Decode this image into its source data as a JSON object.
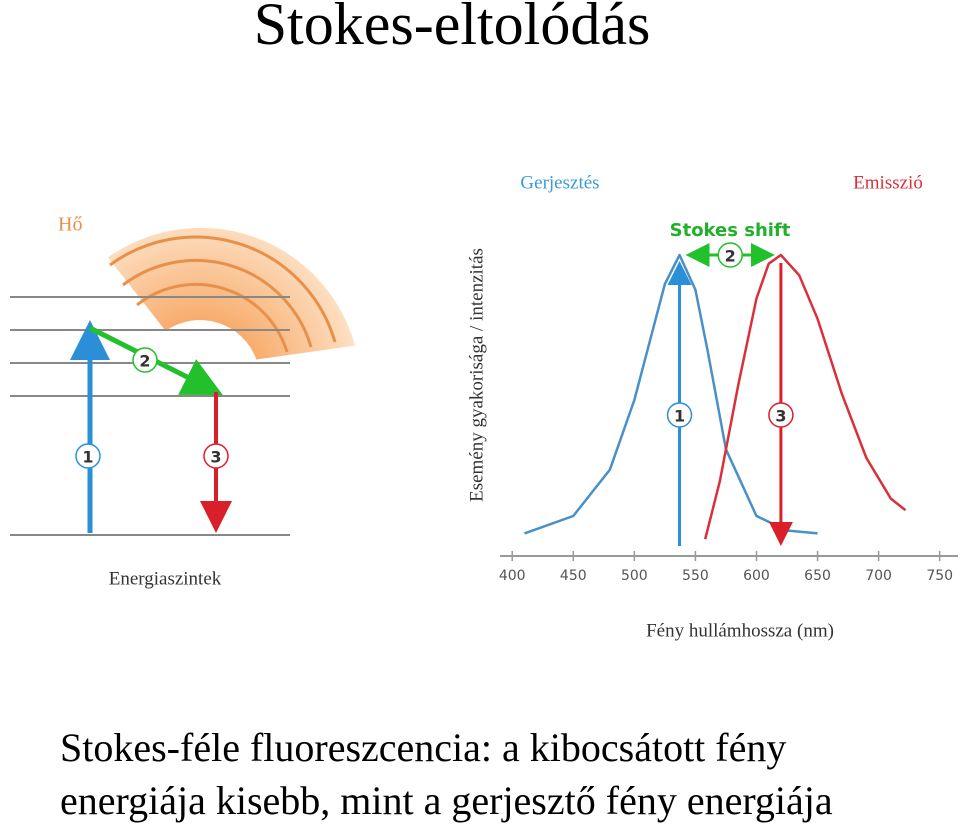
{
  "title": "Stokes-eltolódás",
  "diagram": {
    "heat_label": "Hő",
    "levels_label": "Energiaszintek",
    "step_numbers": [
      "1",
      "2",
      "3"
    ]
  },
  "chart_data": {
    "type": "line",
    "title": "Stokes shift",
    "x_label": "Fény hullámhossza (nm)",
    "y_label": "Esemény gyakorisága / intenzitás",
    "xlim": [
      390,
      765
    ],
    "ylim": [
      0,
      1
    ],
    "xticks": [
      400,
      450,
      500,
      550,
      600,
      650,
      700,
      750
    ],
    "series": [
      {
        "name": "Gerjesztés",
        "color": "#4a90c8",
        "x": [
          410,
          450,
          480,
          500,
          515,
          525,
          537,
          550,
          560,
          575,
          600,
          625,
          650
        ],
        "values": [
          0.04,
          0.1,
          0.26,
          0.5,
          0.74,
          0.9,
          1.0,
          0.88,
          0.67,
          0.33,
          0.1,
          0.05,
          0.04
        ]
      },
      {
        "name": "Emisszió",
        "color": "#d9303a",
        "x": [
          558,
          570,
          585,
          600,
          610,
          620,
          635,
          650,
          670,
          690,
          710,
          722
        ],
        "values": [
          0.02,
          0.22,
          0.55,
          0.85,
          0.97,
          1.0,
          0.93,
          0.78,
          0.52,
          0.3,
          0.16,
          0.12
        ]
      }
    ]
  },
  "caption": [
    "Stokes-féle fluoreszcencia: a kibocsátott fény",
    "energiája kisebb, mint a gerjesztő fény energiája"
  ]
}
